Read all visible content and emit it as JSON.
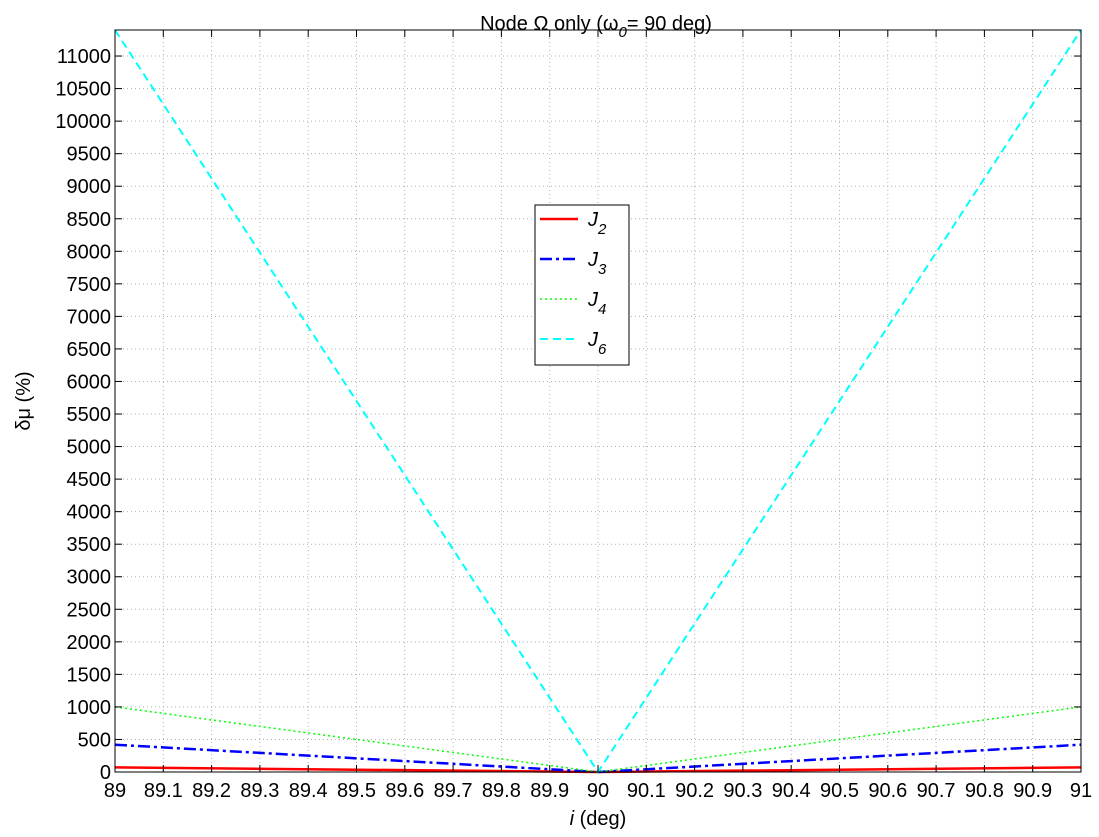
{
  "chart_data": {
    "type": "line",
    "title": "Node Ω only (ω",
    "title_sub": "0",
    "title_end": "= 90 deg)",
    "xlabel_italic": "i",
    "xlabel": " (deg)",
    "ylabel": "δμ (%)",
    "xlim": [
      89,
      91
    ],
    "ylim": [
      0,
      11400
    ],
    "xticks": [
      89,
      89.1,
      89.2,
      89.3,
      89.4,
      89.5,
      89.6,
      89.7,
      89.8,
      89.9,
      90,
      90.1,
      90.2,
      90.3,
      90.4,
      90.5,
      90.6,
      90.7,
      90.8,
      90.9,
      91
    ],
    "xtick_labels": [
      "89",
      "89.1",
      "89.2",
      "89.3",
      "89.4",
      "89.5",
      "89.6",
      "89.7",
      "89.8",
      "89.9",
      "90",
      "90.1",
      "90.2",
      "90.3",
      "90.4",
      "90.5",
      "90.6",
      "90.7",
      "90.8",
      "90.9",
      "91"
    ],
    "yticks": [
      0,
      500,
      1000,
      1500,
      2000,
      2500,
      3000,
      3500,
      4000,
      4500,
      5000,
      5500,
      6000,
      6500,
      7000,
      7500,
      8000,
      8500,
      9000,
      9500,
      10000,
      10500,
      11000
    ],
    "ytick_labels": [
      "0",
      "500",
      "1000",
      "1500",
      "2000",
      "2500",
      "3000",
      "3500",
      "4000",
      "4500",
      "5000",
      "5500",
      "6000",
      "6500",
      "7000",
      "7500",
      "8000",
      "8500",
      "9000",
      "9500",
      "10000",
      "10500",
      "11000"
    ],
    "grid": true,
    "legend_position": "center-top",
    "series": [
      {
        "name": "J",
        "sub": "2",
        "color": "#ff0000",
        "dash": "solid",
        "x": [
          89,
          90,
          91
        ],
        "y": [
          70,
          0,
          70
        ]
      },
      {
        "name": "J",
        "sub": "3",
        "color": "#0000ff",
        "dash": "dashdot",
        "x": [
          89,
          90,
          91
        ],
        "y": [
          420,
          0,
          420
        ]
      },
      {
        "name": "J",
        "sub": "4",
        "color": "#00ff00",
        "dash": "dotted",
        "x": [
          89,
          90,
          91
        ],
        "y": [
          1000,
          0,
          1000
        ]
      },
      {
        "name": "J",
        "sub": "6",
        "color": "#00ffff",
        "dash": "dashed",
        "x": [
          89,
          90,
          91
        ],
        "y": [
          11400,
          0,
          11400
        ]
      }
    ]
  }
}
